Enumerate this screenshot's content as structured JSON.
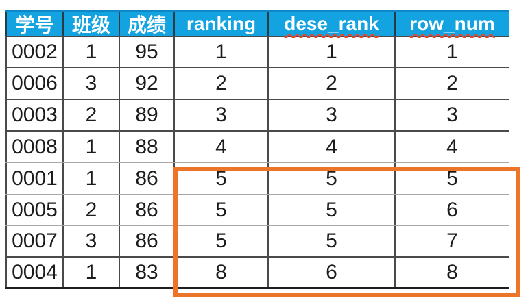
{
  "colors": {
    "header_bg": "#14A3E1",
    "header_text": "#FFFFFF",
    "header_top_border": "#0D87C6",
    "grid_dark": "#4A4A4A",
    "grid_light": "#A8A8A8",
    "outer_bottom": "#1F1F1F",
    "highlight_border": "#ED7428",
    "cell_text": "#1C1C1C",
    "squiggle": "#E8442C"
  },
  "table": {
    "headers": [
      {
        "label": "学号",
        "spellcheck_underline": false
      },
      {
        "label": "班级",
        "spellcheck_underline": false
      },
      {
        "label": "成绩",
        "spellcheck_underline": false
      },
      {
        "label": "ranking",
        "spellcheck_underline": false
      },
      {
        "label": "dese_rank",
        "spellcheck_underline": true
      },
      {
        "label": "row_num",
        "spellcheck_underline": true
      }
    ],
    "rows": [
      {
        "cells": [
          "0002",
          "1",
          "95",
          "1",
          "1",
          "1"
        ]
      },
      {
        "cells": [
          "0006",
          "3",
          "92",
          "2",
          "2",
          "2"
        ]
      },
      {
        "cells": [
          "0003",
          "2",
          "89",
          "3",
          "3",
          "3"
        ]
      },
      {
        "cells": [
          "0008",
          "1",
          "88",
          "4",
          "4",
          "4"
        ]
      },
      {
        "cells": [
          "0001",
          "1",
          "86",
          "5",
          "5",
          "5"
        ]
      },
      {
        "cells": [
          "0005",
          "2",
          "86",
          "5",
          "5",
          "6"
        ]
      },
      {
        "cells": [
          "0007",
          "3",
          "86",
          "5",
          "5",
          "7"
        ]
      },
      {
        "cells": [
          "0004",
          "1",
          "83",
          "8",
          "6",
          "8"
        ]
      }
    ],
    "highlight": {
      "columns": [
        "ranking",
        "dese_rank",
        "row_num"
      ],
      "row_start_index": 4,
      "row_end_index": 7
    }
  }
}
